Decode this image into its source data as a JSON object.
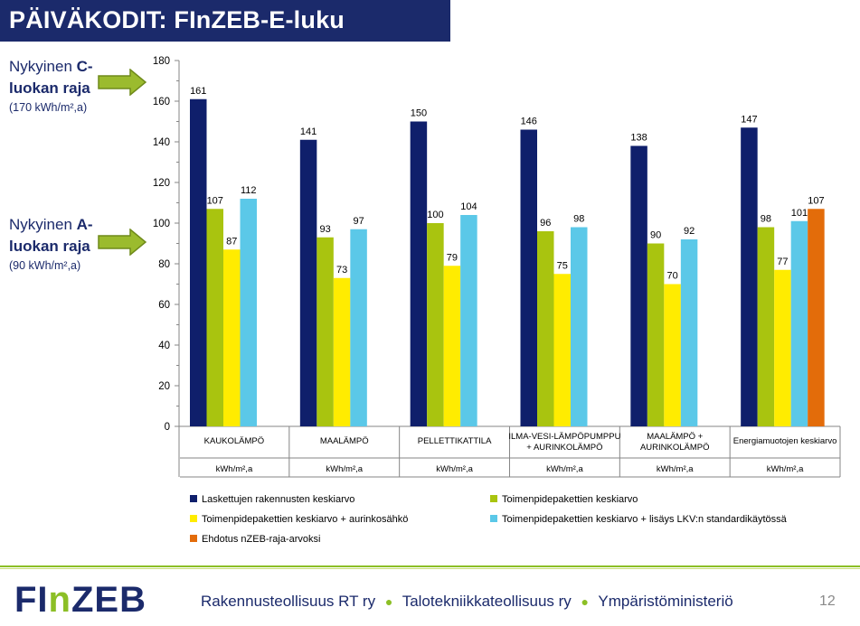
{
  "slide": {
    "title": "PÄIVÄKODIT: FInZEB-E-luku",
    "page_number": "12"
  },
  "side_notes": {
    "c_limit": {
      "line1_prefix": "Nykyinen ",
      "line1_bold": "C-",
      "line2": "luokan raja",
      "line3": "(170 kWh/m²,a)"
    },
    "a_limit": {
      "line1_prefix": "Nykyinen ",
      "line1_bold": "A-",
      "line2": "luokan raja",
      "line3": "(90 kWh/m²,a)"
    }
  },
  "footer": {
    "logo_part1": "FI",
    "logo_part2": "n",
    "logo_part3": "ZEB",
    "orgs": [
      "Rakennusteollisuus RT ry",
      "Talotekniikkateollisuus ry",
      "Ympäristöministeriö"
    ]
  },
  "colors": {
    "title_bg": "#1b2a6b",
    "accent_green": "#8cbf26",
    "arrow_green": "#9bbb2e"
  },
  "chart_data": {
    "type": "bar",
    "ylim": [
      0,
      180
    ],
    "yticks": [
      "0",
      "20",
      "40",
      "60",
      "80",
      "100",
      "120",
      "140",
      "160",
      "180"
    ],
    "grid": false,
    "legend_position": "bottom",
    "categories": [
      "KAUKOLÄMPÖ",
      "MAALÄMPÖ",
      "PELLETTIKATTILA",
      "ILMA-VESI-LÄMPÖPUMPPU + AURINKOLÄMPÖ",
      "MAALÄMPÖ + AURINKOLÄMPÖ",
      "Energiamuotojen keskiarvo"
    ],
    "category_lines": [
      [
        "KAUKOLÄMPÖ"
      ],
      [
        "MAALÄMPÖ"
      ],
      [
        "PELLETTIKATTILA"
      ],
      [
        "ILMA-VESI-LÄMPÖPUMPPU",
        "+ AURINKOLÄMPÖ"
      ],
      [
        "MAALÄMPÖ +",
        "AURINKOLÄMPÖ"
      ],
      [
        "Energiamuotojen keskiarvo"
      ]
    ],
    "unit_row": [
      "kWh/m²,a",
      "kWh/m²,a",
      "kWh/m²,a",
      "kWh/m²,a",
      "kWh/m²,a",
      "kWh/m²,a"
    ],
    "series": [
      {
        "name": "Laskettujen rakennusten keskiarvo",
        "color": "#0f1f6b",
        "values": [
          161,
          141,
          150,
          146,
          138,
          147
        ]
      },
      {
        "name": "Toimenpidepakettien keskiarvo",
        "color": "#a9c40f",
        "values": [
          107,
          93,
          100,
          96,
          90,
          98
        ]
      },
      {
        "name": "Toimenpidepakettien keskiarvo + aurinkosähkö",
        "color": "#ffec00",
        "values": [
          87,
          73,
          79,
          75,
          70,
          77
        ]
      },
      {
        "name": "Toimenpidepakettien keskiarvo + lisäys LKV:n standardikäytössä",
        "color": "#5bc8e8",
        "values": [
          112,
          97,
          104,
          98,
          92,
          101
        ]
      },
      {
        "name": "Ehdotus nZEB-raja-arvoksi",
        "color": "#e36c0a",
        "values": [
          null,
          null,
          null,
          null,
          null,
          107
        ]
      }
    ]
  }
}
